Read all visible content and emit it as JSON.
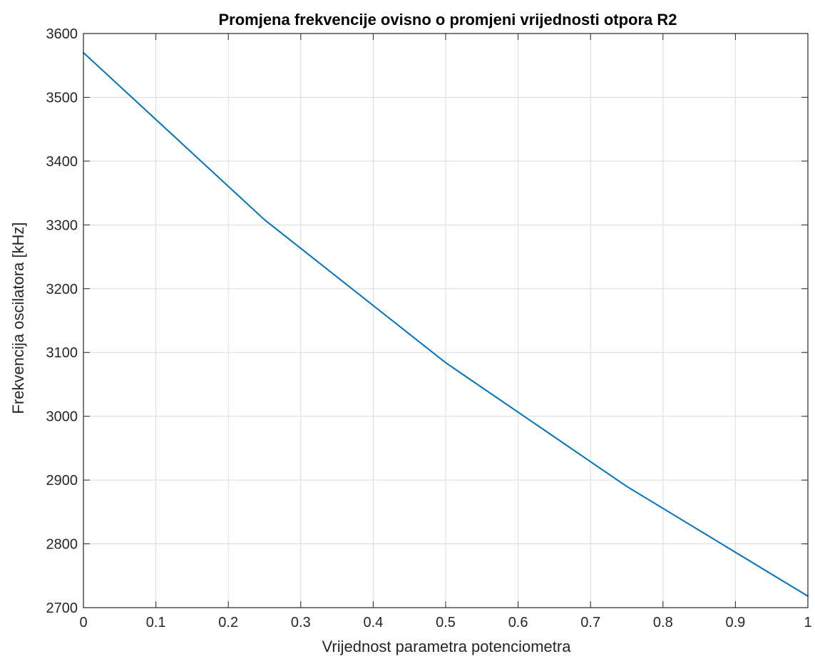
{
  "chart_data": {
    "type": "line",
    "title": "Promjena frekvencije ovisno o promjeni vrijednosti otpora R2",
    "xlabel": "Vrijednost parametra potenciometra",
    "ylabel": "Frekvencija oscilatora [kHz]",
    "xlim": [
      0,
      1
    ],
    "ylim": [
      2700,
      3600
    ],
    "xticks": [
      0,
      0.1,
      0.2,
      0.3,
      0.4,
      0.5,
      0.6,
      0.7,
      0.8,
      0.9,
      1
    ],
    "xtick_labels": [
      "0",
      "0.1",
      "0.2",
      "0.3",
      "0.4",
      "0.5",
      "0.6",
      "0.7",
      "0.8",
      "0.9",
      "1"
    ],
    "yticks": [
      2700,
      2800,
      2900,
      3000,
      3100,
      3200,
      3300,
      3400,
      3500,
      3600
    ],
    "ytick_labels": [
      "2700",
      "2800",
      "2900",
      "3000",
      "3100",
      "3200",
      "3300",
      "3400",
      "3500",
      "3600"
    ],
    "grid": true,
    "colors": {
      "line": "#0072BD",
      "grid": "#dcdcdc",
      "axis": "#262626"
    },
    "series": [
      {
        "x": [
          0,
          0.25,
          0.5,
          0.75,
          1.0
        ],
        "y": [
          3570,
          3308,
          3084,
          2890,
          2718
        ]
      }
    ]
  }
}
